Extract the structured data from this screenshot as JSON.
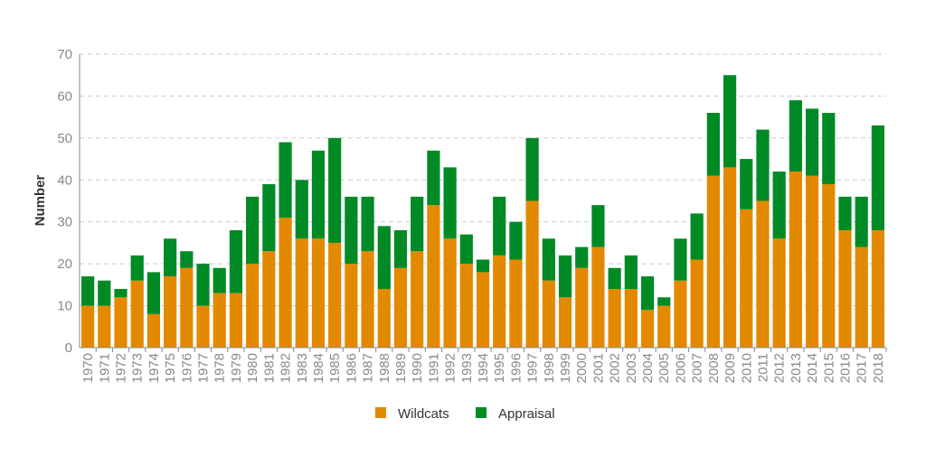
{
  "chart_data": {
    "type": "bar",
    "stacked": true,
    "title": "",
    "xlabel": "",
    "ylabel": "Number",
    "ylim": [
      0,
      70
    ],
    "yticks": [
      0,
      10,
      20,
      30,
      40,
      50,
      60,
      70
    ],
    "grid": "horizontal dashed",
    "legend_position": "bottom",
    "categories": [
      "1970",
      "1971",
      "1972",
      "1973",
      "1974",
      "1975",
      "1976",
      "1977",
      "1978",
      "1979",
      "1980",
      "1981",
      "1982",
      "1983",
      "1984",
      "1985",
      "1986",
      "1987",
      "1988",
      "1989",
      "1990",
      "1991",
      "1992",
      "1993",
      "1994",
      "1995",
      "1996",
      "1997",
      "1998",
      "1999",
      "2000",
      "2001",
      "2002",
      "2003",
      "2004",
      "2005",
      "2006",
      "2007",
      "2008",
      "2009",
      "2010",
      "2011",
      "2012",
      "2013",
      "2014",
      "2015",
      "2016",
      "2017",
      "2018"
    ],
    "series": [
      {
        "name": "Wildcats",
        "color": "#e38900",
        "values": [
          10,
          10,
          12,
          16,
          8,
          17,
          19,
          10,
          13,
          13,
          20,
          23,
          31,
          26,
          26,
          25,
          20,
          23,
          14,
          19,
          23,
          34,
          26,
          20,
          18,
          22,
          21,
          35,
          16,
          12,
          19,
          24,
          14,
          14,
          9,
          10,
          16,
          21,
          41,
          43,
          33,
          35,
          26,
          42,
          41,
          39,
          28,
          24,
          28
        ]
      },
      {
        "name": "Appraisal",
        "color": "#008a25",
        "values": [
          7,
          6,
          2,
          6,
          10,
          9,
          4,
          10,
          6,
          15,
          16,
          16,
          18,
          14,
          21,
          25,
          16,
          13,
          15,
          9,
          13,
          13,
          17,
          7,
          3,
          14,
          9,
          15,
          10,
          10,
          5,
          10,
          5,
          8,
          8,
          2,
          10,
          11,
          15,
          22,
          12,
          17,
          16,
          17,
          16,
          17,
          8,
          12,
          25
        ]
      }
    ]
  }
}
